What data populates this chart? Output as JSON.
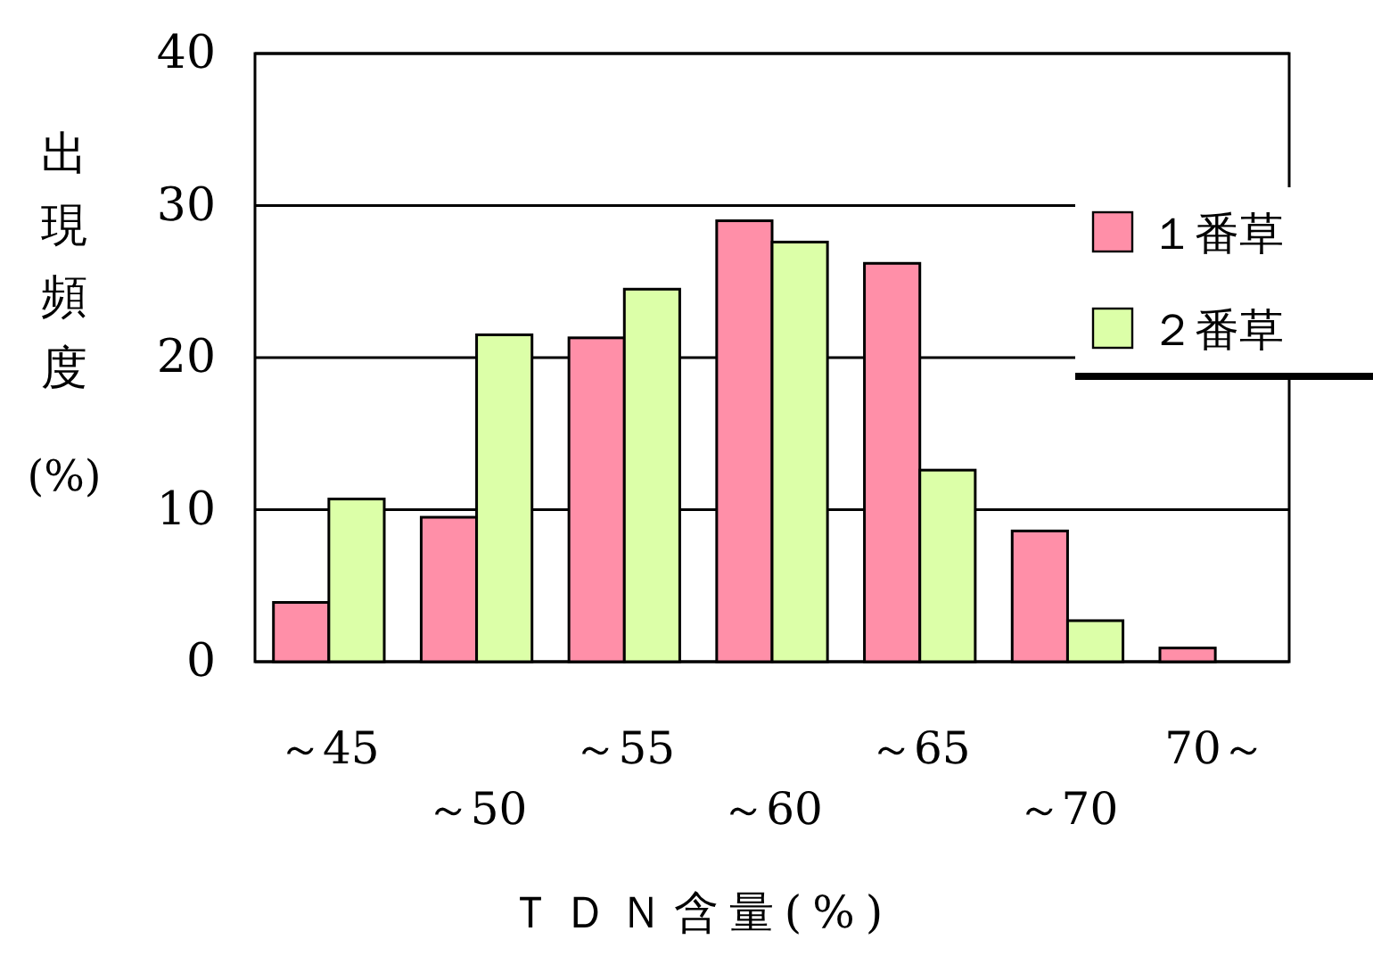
{
  "chart_data": {
    "type": "bar",
    "xlabel": "ＴＤＮ含量(%)",
    "ylabel": "出現頻度(%)",
    "categories": [
      "～45",
      "～50",
      "～55",
      "～60",
      "～65",
      "～70",
      "70～"
    ],
    "series": [
      {
        "name": "１番草",
        "color": "#ff8fa8",
        "values": [
          3.9,
          9.5,
          21.3,
          29.0,
          26.2,
          8.6,
          0.9
        ]
      },
      {
        "name": "２番草",
        "color": "#dcffa8",
        "values": [
          10.7,
          21.5,
          24.5,
          27.6,
          12.6,
          2.7,
          0
        ]
      }
    ],
    "ylim": [
      0,
      40
    ],
    "yticks": [
      0,
      10,
      20,
      30,
      40
    ],
    "grid": "y",
    "legend": "right"
  }
}
